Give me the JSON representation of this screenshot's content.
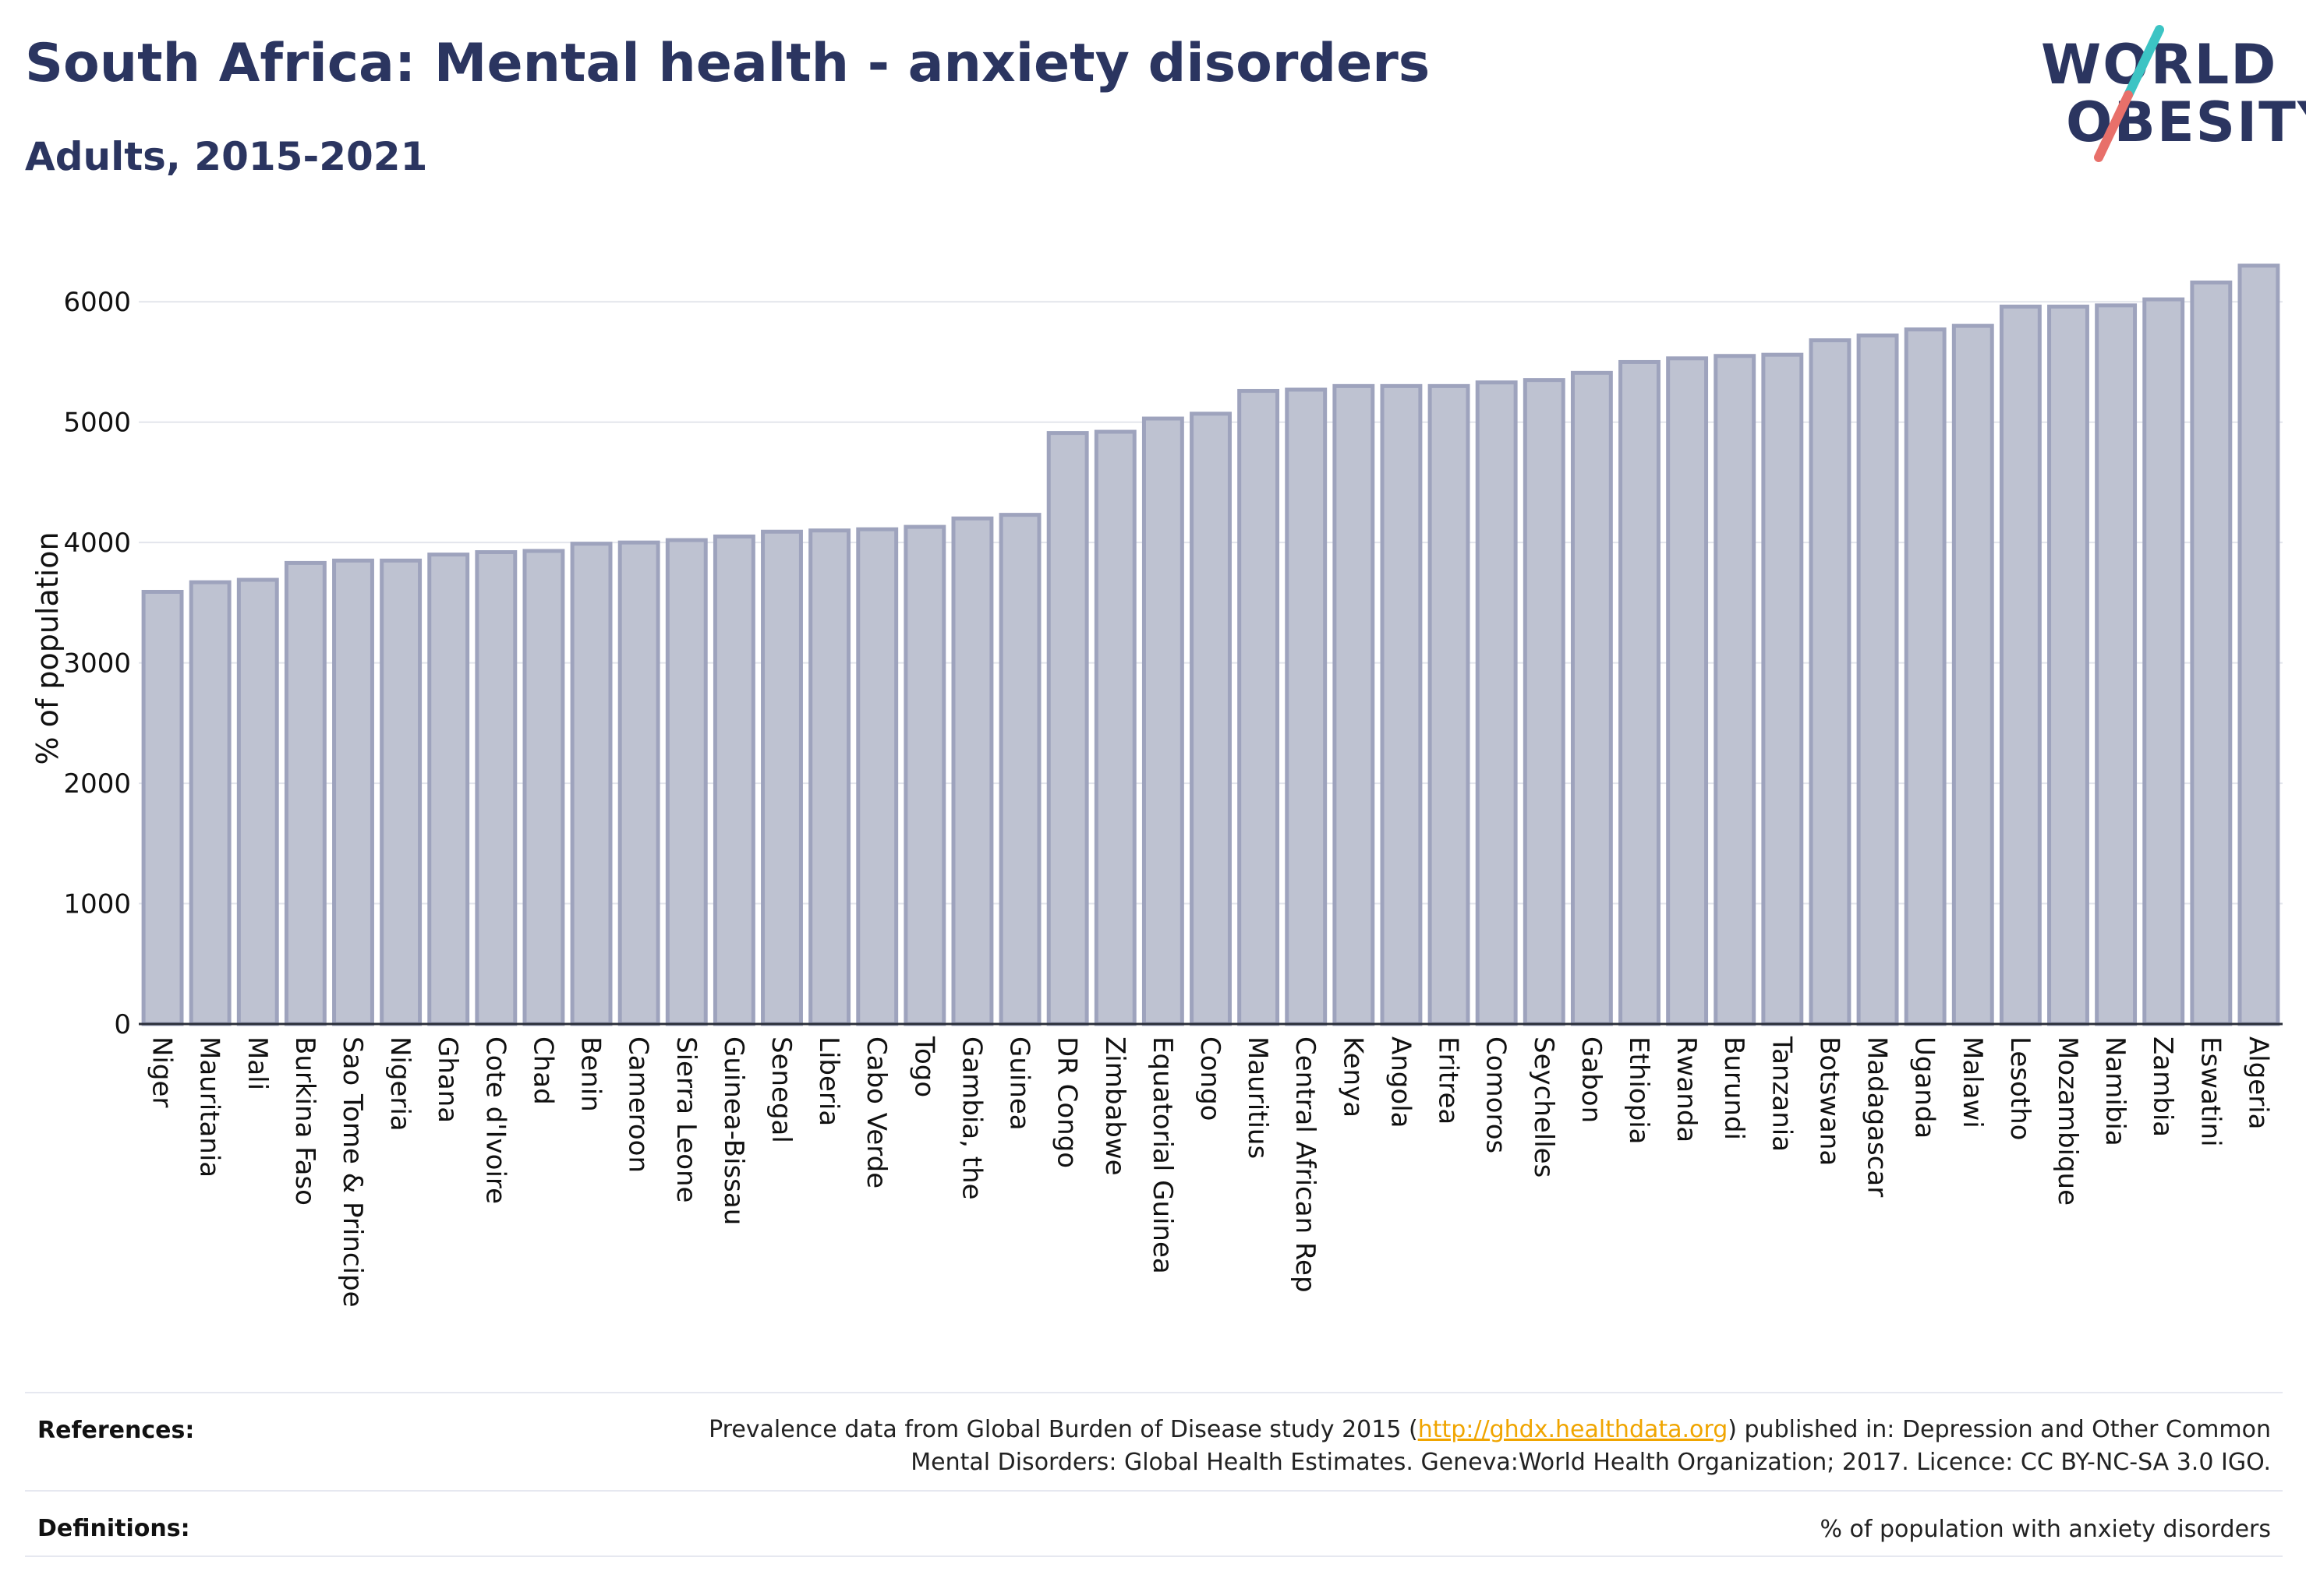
{
  "header": {
    "title": "South Africa: Mental health - anxiety disorders",
    "subtitle": "Adults, 2015-2021"
  },
  "logo": {
    "line1": "WORLD",
    "line2": "OBESITY",
    "accent_colors": [
      "#3cc4c4",
      "#e8706a"
    ]
  },
  "footer": {
    "references_label": "References:",
    "references_pre": "Prevalence data from Global Burden of Disease study 2015 (",
    "references_link": "http://ghdx.healthdata.org",
    "references_post": ") published in: Depression and Other Common",
    "references_line2": "Mental Disorders: Global Health Estimates. Geneva:World Health Organization; 2017. Licence: CC BY-NC-SA 3.0 IGO.",
    "definitions_label": "Definitions:",
    "definitions_text": "% of population with anxiety disorders"
  },
  "chart_data": {
    "type": "bar",
    "title": "",
    "xlabel": "",
    "ylabel": "% of population",
    "ylim": [
      0,
      6500
    ],
    "yticks": [
      0,
      1000,
      2000,
      3000,
      4000,
      5000,
      6000
    ],
    "grid": true,
    "bar_fill": "#bec2d1",
    "bar_stroke": "#9ea3bd",
    "categories": [
      "Niger",
      "Mauritania",
      "Mali",
      "Burkina Faso",
      "Sao Tome & Principe",
      "Nigeria",
      "Ghana",
      "Cote d'Ivoire",
      "Chad",
      "Benin",
      "Cameroon",
      "Sierra Leone",
      "Guinea-Bissau",
      "Senegal",
      "Liberia",
      "Cabo Verde",
      "Togo",
      "Gambia, the",
      "Guinea",
      "DR Congo",
      "Zimbabwe",
      "Equatorial Guinea",
      "Congo",
      "Mauritius",
      "Central African Rep",
      "Kenya",
      "Angola",
      "Eritrea",
      "Comoros",
      "Seychelles",
      "Gabon",
      "Ethiopia",
      "Rwanda",
      "Burundi",
      "Tanzania",
      "Botswana",
      "Madagascar",
      "Uganda",
      "Malawi",
      "Lesotho",
      "Mozambique",
      "Namibia",
      "Zambia",
      "Eswatini",
      "Algeria"
    ],
    "values": [
      3590,
      3670,
      3690,
      3830,
      3850,
      3850,
      3900,
      3920,
      3930,
      3990,
      4000,
      4020,
      4050,
      4090,
      4100,
      4110,
      4130,
      4200,
      4230,
      4910,
      4920,
      5030,
      5070,
      5260,
      5270,
      5300,
      5300,
      5300,
      5330,
      5350,
      5410,
      5500,
      5530,
      5550,
      5560,
      5680,
      5720,
      5770,
      5800,
      5960,
      5960,
      5970,
      6020,
      6160,
      6300
    ]
  }
}
